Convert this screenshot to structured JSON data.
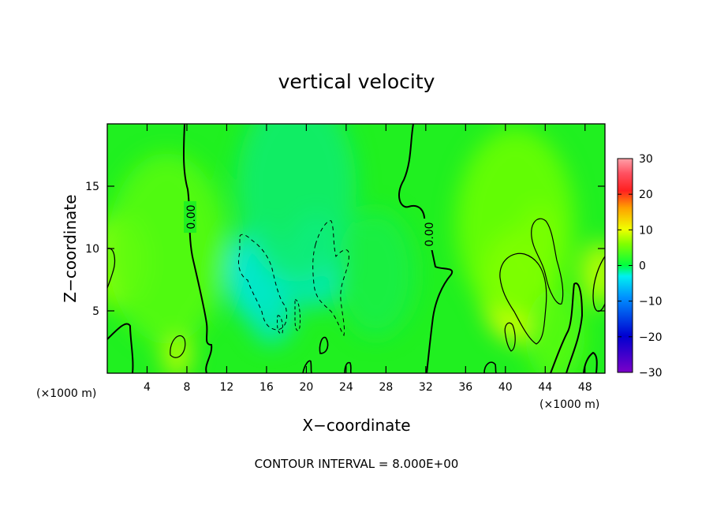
{
  "chart_data": {
    "type": "heatmap",
    "title": "vertical velocity",
    "xlabel": "X−coordinate",
    "ylabel": "Z−coordinate",
    "x_unit_left": "(×1000 m)",
    "x_unit_right": "(×1000 m)",
    "xlim": [
      0,
      50
    ],
    "ylim": [
      0,
      20
    ],
    "x_ticks": [
      4,
      8,
      12,
      16,
      20,
      24,
      28,
      32,
      36,
      40,
      44,
      48
    ],
    "y_ticks": [
      5,
      10,
      15
    ],
    "colorbar": {
      "range": [
        -30,
        30
      ],
      "ticks": [
        30,
        20,
        10,
        0,
        -10,
        -20,
        -30
      ],
      "tick_labels": [
        "30",
        "20",
        "10",
        "0",
        "−10",
        "−20",
        "−30"
      ]
    },
    "contour_interval_text": "CONTOUR INTERVAL = 8.000E+00",
    "contour_labels": [
      "0.00",
      "0.00"
    ],
    "field_regions": [
      {
        "x": 1,
        "z": 9,
        "w": 3,
        "value": 6
      },
      {
        "x": 7,
        "z": 1.5,
        "w": 1.5,
        "value": 8
      },
      {
        "x": 6,
        "z": 10,
        "w": 6,
        "value": 3
      },
      {
        "x": 15,
        "z": 8,
        "w": 3,
        "value": -5
      },
      {
        "x": 16.5,
        "z": 5.5,
        "w": 2.5,
        "value": -4
      },
      {
        "x": 21,
        "z": 9,
        "w": 3,
        "value": -4
      },
      {
        "x": 19,
        "z": 15,
        "w": 6,
        "value": -2
      },
      {
        "x": 27,
        "z": 8,
        "w": 4,
        "value": -1
      },
      {
        "x": 41,
        "z": 7,
        "w": 3.5,
        "value": 10
      },
      {
        "x": 43.5,
        "z": 11,
        "w": 2,
        "value": 8
      },
      {
        "x": 41,
        "z": 12,
        "w": 6,
        "value": 4
      },
      {
        "x": 49.5,
        "z": 8,
        "w": 2,
        "value": 8
      },
      {
        "x": 45,
        "z": 3,
        "w": 3,
        "value": 3
      }
    ]
  }
}
